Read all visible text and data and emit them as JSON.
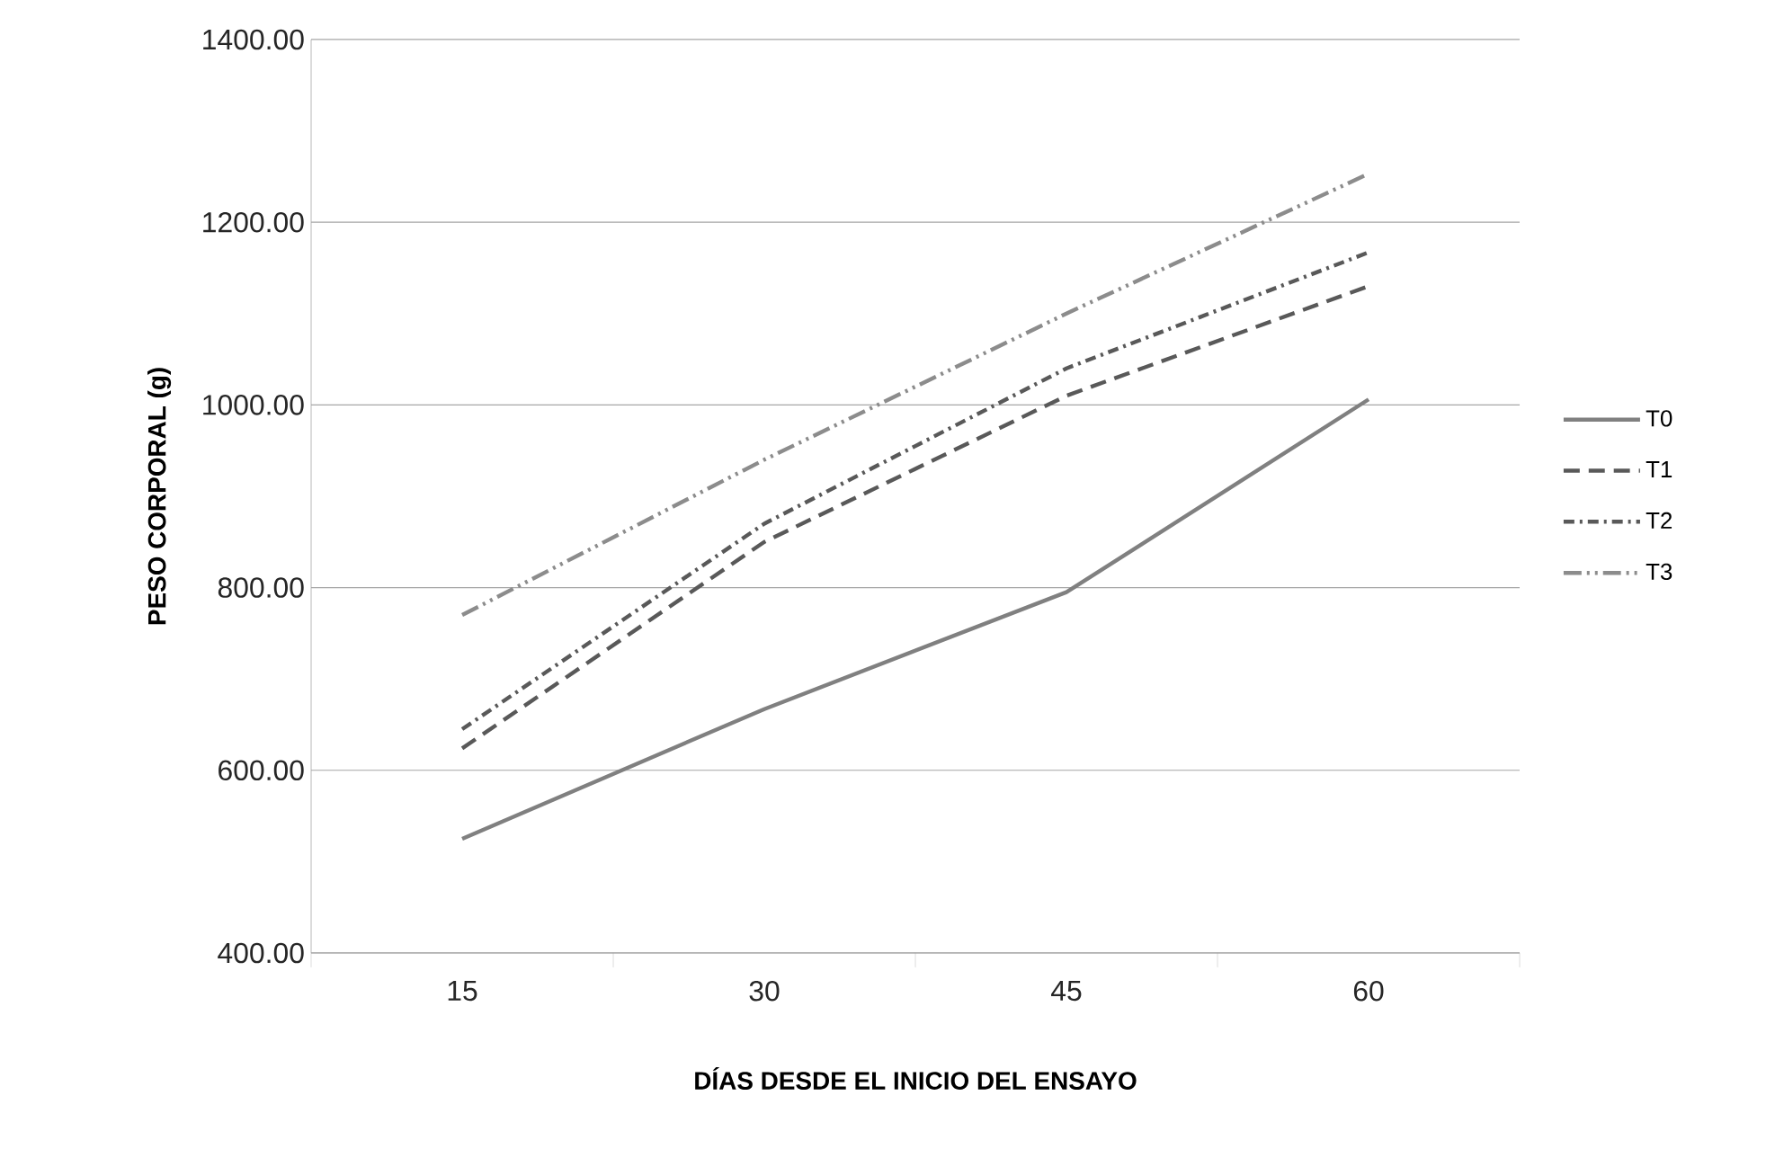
{
  "chart_data": {
    "type": "line",
    "xlabel": "DÍAS DESDE EL INICIO DEL ENSAYO",
    "ylabel": "PESO CORPORAL (g)",
    "categories": [
      "15",
      "30",
      "45",
      "60"
    ],
    "series": [
      {
        "name": "T0",
        "color": "#808080",
        "line_style": "solid",
        "values": [
          525,
          667,
          795,
          1006
        ]
      },
      {
        "name": "T1",
        "color": "#595959",
        "line_style": "dashed",
        "values": [
          624,
          850,
          1010,
          1130
        ]
      },
      {
        "name": "T2",
        "color": "#595959",
        "line_style": "dashdot",
        "values": [
          645,
          870,
          1040,
          1167
        ]
      },
      {
        "name": "T3",
        "color": "#8c8c8c",
        "line_style": "dashdotdot",
        "values": [
          770,
          940,
          1100,
          1253
        ]
      }
    ],
    "ylim": [
      400,
      1400
    ],
    "yticks": [
      {
        "value": 400,
        "label": "400.00"
      },
      {
        "value": 600,
        "label": "600.00"
      },
      {
        "value": 800,
        "label": "800.00"
      },
      {
        "value": 1000,
        "label": "1000.00"
      },
      {
        "value": 1200,
        "label": "1200.00"
      },
      {
        "value": 1400,
        "label": "1400.00"
      }
    ],
    "grid": "y",
    "legend": "right"
  }
}
